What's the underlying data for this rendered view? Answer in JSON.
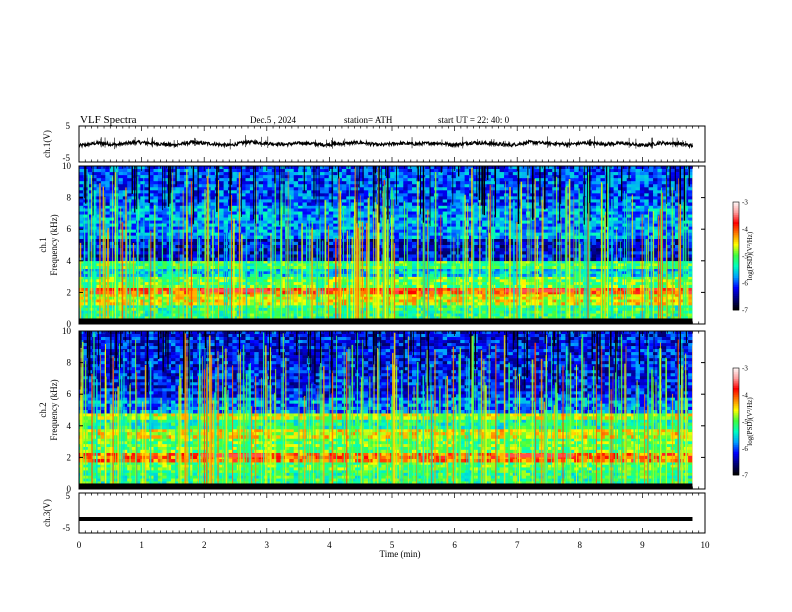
{
  "header": {
    "title": "VLF  Spectra",
    "date": "Dec.5  , 2024",
    "station": "station= ATH",
    "start": "start  UT  =    22: 40: 0"
  },
  "chart_data": [
    {
      "type": "line",
      "panel": "ch1-waveform",
      "ylabel": "ch.1(V)",
      "ylim": [
        -5,
        5
      ],
      "yticks": [
        "5",
        "-5"
      ],
      "xlim": [
        0,
        10
      ],
      "xticks": [
        "0",
        "1",
        "2",
        "3",
        "4",
        "5",
        "6",
        "7",
        "8",
        "9",
        "10"
      ],
      "series": [
        {
          "x": [
            0.0,
            0.3,
            0.6,
            0.9,
            1.2,
            1.5,
            1.8,
            2.1,
            2.4,
            2.7,
            3.0,
            3.3,
            3.6,
            3.9,
            4.2,
            4.5,
            4.8,
            5.1,
            5.4,
            5.7,
            6.0,
            6.3,
            6.6,
            6.9,
            7.2,
            7.5,
            7.8,
            8.1,
            8.4,
            8.7,
            9.0,
            9.3,
            9.6,
            9.8
          ],
          "values": [
            -0.5,
            0.3,
            -0.2,
            0.5,
            0.2,
            -0.3,
            0.4,
            0.1,
            -0.4,
            0.6,
            0.2,
            -0.1,
            0.3,
            -0.2,
            0.1,
            0.4,
            -0.3,
            0.2,
            0.0,
            0.3,
            -0.2,
            0.4,
            0.1,
            -0.3,
            0.5,
            0.2,
            -0.1,
            0.3,
            0.0,
            0.2,
            -0.4,
            0.3,
            0.1,
            -0.5
          ]
        }
      ]
    },
    {
      "type": "heatmap",
      "panel": "ch1-spectrogram",
      "ylabel": "ch.1",
      "ylabel2": "Frequency (kHz)",
      "xlim": [
        0,
        9.8
      ],
      "ylim": [
        0,
        10
      ],
      "yticks": [
        "0",
        "2",
        "4",
        "6",
        "8",
        "10"
      ],
      "bands_khz": [
        {
          "from": 0,
          "to": 0.3,
          "level": -7
        },
        {
          "from": 0.3,
          "to": 1.2,
          "level": -5.2
        },
        {
          "from": 1.2,
          "to": 1.9,
          "level": -4.6
        },
        {
          "from": 1.9,
          "to": 2.3,
          "level": -4.0
        },
        {
          "from": 2.3,
          "to": 3.0,
          "level": -5.0
        },
        {
          "from": 3.0,
          "to": 3.5,
          "level": -5.6
        },
        {
          "from": 3.5,
          "to": 4.0,
          "level": -5.1
        },
        {
          "from": 4.0,
          "to": 5.4,
          "level": -6.3
        },
        {
          "from": 5.4,
          "to": 7.5,
          "level": -5.8
        },
        {
          "from": 7.5,
          "to": 10,
          "level": -6.0
        }
      ],
      "colorbar": {
        "label": "log(PSD)(V²/Hz)",
        "range": [
          -7,
          -3
        ],
        "ticks": [
          "-3",
          "-4",
          "-5",
          "-6",
          "-7"
        ]
      }
    },
    {
      "type": "heatmap",
      "panel": "ch2-spectrogram",
      "ylabel": "ch.2",
      "ylabel2": "Frequency (kHz)",
      "xlim": [
        0,
        9.8
      ],
      "ylim": [
        0,
        10
      ],
      "yticks": [
        "0",
        "2",
        "4",
        "6",
        "8",
        "10"
      ],
      "bands_khz": [
        {
          "from": 0,
          "to": 0.3,
          "level": -7
        },
        {
          "from": 0.3,
          "to": 1.2,
          "level": -5.2
        },
        {
          "from": 1.2,
          "to": 1.7,
          "level": -5.0
        },
        {
          "from": 1.7,
          "to": 2.3,
          "level": -4.1
        },
        {
          "from": 2.3,
          "to": 3.2,
          "level": -5.0
        },
        {
          "from": 3.2,
          "to": 3.8,
          "level": -4.6
        },
        {
          "from": 3.8,
          "to": 4.4,
          "level": -5.3
        },
        {
          "from": 4.4,
          "to": 4.8,
          "level": -4.7
        },
        {
          "from": 4.8,
          "to": 5.8,
          "level": -5.9
        },
        {
          "from": 5.8,
          "to": 10,
          "level": -6.2
        }
      ],
      "colorbar": {
        "label": "log(PSD)(V²/Hz)",
        "range": [
          -7,
          -3
        ],
        "ticks": [
          "-3",
          "-4",
          "-5",
          "-6",
          "-7"
        ]
      }
    },
    {
      "type": "line",
      "panel": "ch3-waveform",
      "ylabel": "ch.3(V)",
      "ylim": [
        -5,
        5
      ],
      "yticks": [
        "5",
        "-5"
      ],
      "xlabel": "Time  (min)",
      "series": [
        {
          "x": [
            0,
            9.8
          ],
          "values": [
            -1.5,
            -1.5
          ]
        }
      ]
    }
  ],
  "colors": {
    "frame": "#000000",
    "colormap": [
      "#000000",
      "#00007a",
      "#0000ff",
      "#00a0ff",
      "#00ffc0",
      "#40ff40",
      "#ffff00",
      "#ff8000",
      "#ff0000",
      "#ffa0a0",
      "#ffffff"
    ]
  }
}
